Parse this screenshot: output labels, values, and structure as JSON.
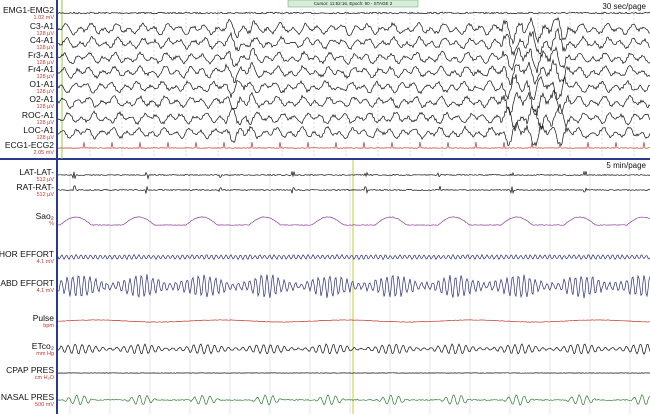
{
  "top_panel": {
    "timescale": "30 sec/page",
    "cursor": "Cursor: 11:52:16, Epoch: 90 - STAGE 2",
    "channels": [
      {
        "name": "EMG1-EMG2",
        "scale": "1.02 mV"
      },
      {
        "name": "C3-A1",
        "scale": "128 µV"
      },
      {
        "name": "C4-A1",
        "scale": "128 µV"
      },
      {
        "name": "Fr3-A1",
        "scale": "128 µV"
      },
      {
        "name": "Fr4-A1",
        "scale": "128 µV"
      },
      {
        "name": "O1-A1",
        "scale": "128 µV"
      },
      {
        "name": "O2-A1",
        "scale": "128 µV"
      },
      {
        "name": "ROC-A1",
        "scale": "128 µV"
      },
      {
        "name": "LOC-A1",
        "scale": "128 µV"
      },
      {
        "name": "ECG1-ECG2",
        "scale": "2.05 mV"
      }
    ]
  },
  "bottom_panel": {
    "timescale": "5 min/page",
    "channels": [
      {
        "name": "LAT-LAT-",
        "scale": "512 µV"
      },
      {
        "name": "RAT-RAT-",
        "scale": "512 µV"
      },
      {
        "name": "Sao₂",
        "scale": "%"
      },
      {
        "name": "THOR EFFORT",
        "scale": "4.1 mV"
      },
      {
        "name": "ABD EFFORT",
        "scale": "4.1 mV"
      },
      {
        "name": "Pulse",
        "scale": "bpm"
      },
      {
        "name": "ETco₂",
        "scale": "mm Hg"
      },
      {
        "name": "CPAP PRES",
        "scale": "cm H₂O"
      },
      {
        "name": "NASAL PRES",
        "scale": "500 mV"
      }
    ]
  }
}
